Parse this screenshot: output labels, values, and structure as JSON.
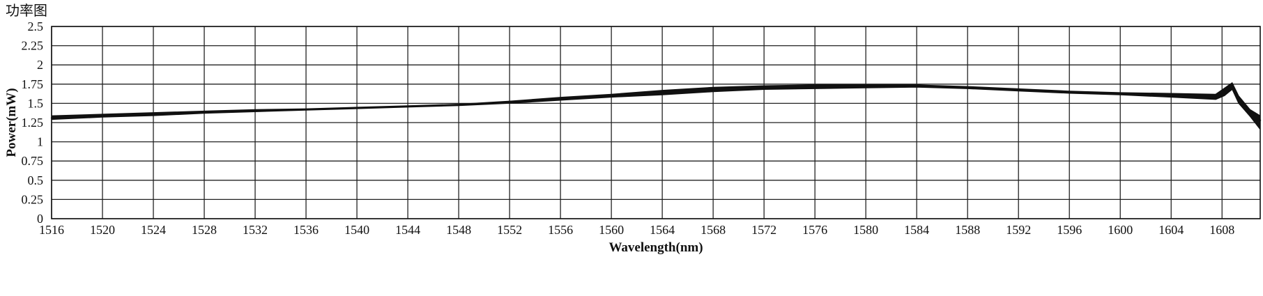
{
  "chart_data": {
    "type": "line",
    "title": "功率图",
    "xlabel": "Wavelength(nm)",
    "ylabel": "Power(mW)",
    "xlim": [
      1516,
      1611
    ],
    "ylim": [
      0,
      2.5
    ],
    "xticks": [
      1516,
      1520,
      1524,
      1528,
      1532,
      1536,
      1540,
      1544,
      1548,
      1552,
      1556,
      1560,
      1564,
      1568,
      1572,
      1576,
      1580,
      1584,
      1588,
      1592,
      1596,
      1600,
      1604,
      1608
    ],
    "xtick_labels": [
      "1516",
      "1520",
      "1524",
      "1528",
      "1532",
      "1536",
      "1540",
      "1544",
      "1548",
      "1552",
      "1556",
      "1560",
      "1564",
      "1568",
      "1572",
      "1576",
      "1580",
      "1584",
      "1588",
      "1592",
      "1596",
      "1600",
      "1604",
      "1608"
    ],
    "yticks": [
      0,
      0.25,
      0.5,
      0.75,
      1,
      1.25,
      1.5,
      1.75,
      2,
      2.25,
      2.5
    ],
    "ytick_labels": [
      "0",
      "0.25",
      "0.5",
      "0.75",
      "1",
      "1.25",
      "1.5",
      "1.75",
      "2",
      "2.25",
      "2.5"
    ],
    "grid": true,
    "legend": "none",
    "series": [
      {
        "color": "#111111",
        "x": [
          1516,
          1520,
          1524,
          1528,
          1532,
          1536,
          1540,
          1544,
          1548,
          1552,
          1556,
          1560,
          1564,
          1568,
          1572,
          1576,
          1580,
          1584,
          1588,
          1592,
          1596,
          1600,
          1604,
          1607.5,
          1608.2,
          1608.8,
          1609.3,
          1610.2,
          1611
        ],
        "y": [
          1.31,
          1.34,
          1.36,
          1.38,
          1.4,
          1.42,
          1.44,
          1.46,
          1.48,
          1.52,
          1.56,
          1.6,
          1.64,
          1.68,
          1.7,
          1.71,
          1.72,
          1.72,
          1.7,
          1.67,
          1.64,
          1.62,
          1.6,
          1.59,
          1.66,
          1.74,
          1.56,
          1.38,
          1.28
        ],
        "y_low": [
          1.29,
          1.32,
          1.34,
          1.37,
          1.39,
          1.41,
          1.43,
          1.45,
          1.47,
          1.5,
          1.54,
          1.58,
          1.61,
          1.65,
          1.68,
          1.69,
          1.7,
          1.71,
          1.69,
          1.66,
          1.63,
          1.61,
          1.58,
          1.55,
          1.6,
          1.68,
          1.5,
          1.33,
          1.16
        ],
        "y_high": [
          1.34,
          1.36,
          1.38,
          1.4,
          1.42,
          1.43,
          1.45,
          1.47,
          1.49,
          1.53,
          1.58,
          1.62,
          1.67,
          1.71,
          1.73,
          1.74,
          1.74,
          1.74,
          1.72,
          1.69,
          1.66,
          1.64,
          1.63,
          1.62,
          1.7,
          1.77,
          1.6,
          1.42,
          1.34
        ]
      }
    ]
  }
}
